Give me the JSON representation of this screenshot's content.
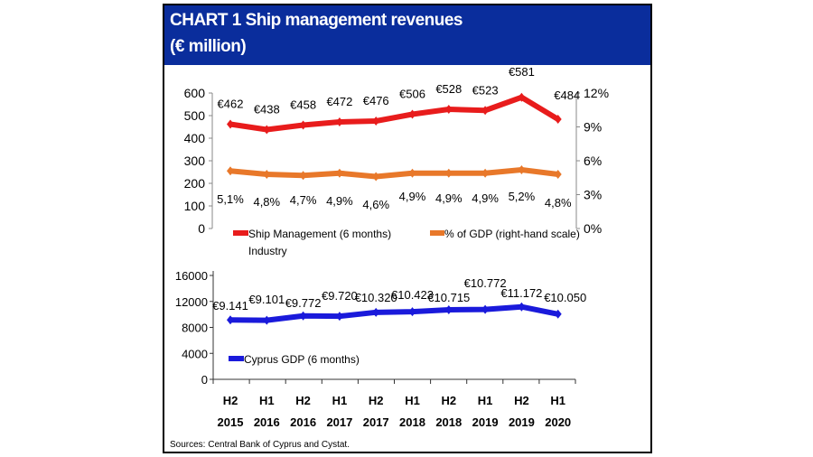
{
  "title_line1": "CHART 1  Ship management revenues",
  "title_line2": "(€ million)",
  "source": "Sources: Central Bank of Cyprus and Cystat.",
  "chart_data": [
    {
      "type": "line",
      "categories": [
        "H2 2015",
        "H1 2016",
        "H2 2016",
        "H1 2017",
        "H2 2017",
        "H1 2018",
        "H2 2018",
        "H1 2019",
        "H2 2019",
        "H1 2020"
      ],
      "left_axis": {
        "ylim": [
          0,
          600
        ],
        "ticks": [
          "0",
          "100",
          "200",
          "300",
          "400",
          "500",
          "600"
        ]
      },
      "right_axis": {
        "ylim": [
          0,
          12
        ],
        "ticks": [
          "0%",
          "3%",
          "6%",
          "9%",
          "12%"
        ]
      },
      "series": [
        {
          "name": "Ship Management (6 months)",
          "name_line2": "Industry",
          "axis": "left",
          "color": "#e81c1c",
          "values": [
            462,
            438,
            458,
            472,
            476,
            506,
            528,
            523,
            581,
            484
          ],
          "labels": [
            "€462",
            "€438",
            "€458",
            "€472",
            "€476",
            "€506",
            "€528",
            "€523",
            "€581",
            "€484"
          ]
        },
        {
          "name": "% of GDP (right-hand scale)",
          "axis": "right",
          "color": "#e8782a",
          "values": [
            5.1,
            4.8,
            4.7,
            4.9,
            4.6,
            4.9,
            4.9,
            4.9,
            5.2,
            4.8
          ],
          "labels": [
            "5,1%",
            "4,8%",
            "4,7%",
            "4,9%",
            "4,6%",
            "4,9%",
            "4,9%",
            "4,9%",
            "5,2%",
            "4,8%"
          ]
        }
      ],
      "legend": "bottom"
    },
    {
      "type": "line",
      "categories": [
        "H2 2015",
        "H1 2016",
        "H2 2016",
        "H1 2017",
        "H2 2017",
        "H1 2018",
        "H2 2018",
        "H1 2019",
        "H2 2019",
        "H1 2020"
      ],
      "category_lines": [
        [
          "H2",
          "2015"
        ],
        [
          "H1",
          "2016"
        ],
        [
          "H2",
          "2016"
        ],
        [
          "H1",
          "2017"
        ],
        [
          "H2",
          "2017"
        ],
        [
          "H1",
          "2018"
        ],
        [
          "H2",
          "2018"
        ],
        [
          "H1",
          "2019"
        ],
        [
          "H2",
          "2019"
        ],
        [
          "H1",
          "2020"
        ]
      ],
      "left_axis": {
        "ylim": [
          0,
          16000
        ],
        "ticks": [
          "0",
          "4000",
          "8000",
          "12000",
          "16000"
        ]
      },
      "series": [
        {
          "name": "Cyprus GDP (6 months)",
          "axis": "left",
          "color": "#1a1adb",
          "values": [
            9141,
            9101,
            9772,
            9720,
            10320,
            10423,
            10715,
            10772,
            11172,
            10050
          ],
          "labels": [
            "€9.141",
            "€9.101",
            "€9.772",
            "€9.720",
            "€10.320",
            "€10.423",
            "€10.715",
            "€10.772",
            "€11.172",
            "€10.050"
          ]
        }
      ],
      "legend": "lower-left"
    }
  ]
}
